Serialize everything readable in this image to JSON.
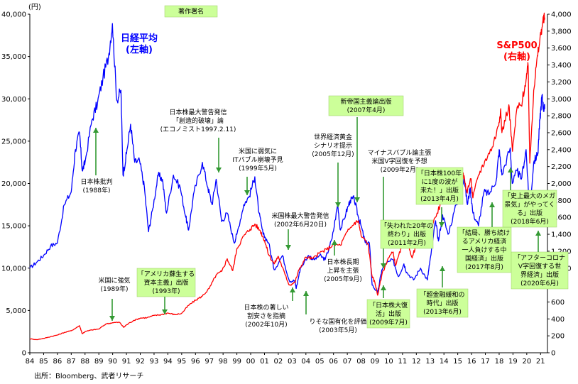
{
  "chart_data": {
    "type": "line",
    "x_axis": {
      "ticks": [
        "84",
        "85",
        "86",
        "87",
        "88",
        "89",
        "90",
        "91",
        "92",
        "93",
        "94",
        "95",
        "96",
        "97",
        "98",
        "99",
        "00",
        "01",
        "02",
        "03",
        "04",
        "05",
        "06",
        "07",
        "08",
        "09",
        "10",
        "11",
        "12",
        "13",
        "14",
        "15",
        "16",
        "17",
        "18",
        "19",
        "20",
        "21"
      ],
      "range": [
        1984,
        2021.5
      ]
    },
    "y_left": {
      "unit_label": "(円)",
      "ticks": [
        "0",
        "5,000",
        "10,000",
        "15,000",
        "20,000",
        "25,000",
        "30,000",
        "35,000",
        "40,000"
      ],
      "range": [
        0,
        40000
      ]
    },
    "y_right": {
      "ticks": [
        "0",
        "200",
        "400",
        "600",
        "800",
        "1,000",
        "1,200",
        "1,400",
        "1,600",
        "1,800",
        "2,000",
        "2,200",
        "2,400",
        "2,600",
        "2,800",
        "3,000",
        "3,200",
        "3,400",
        "3,600",
        "3,800",
        "4,000"
      ],
      "range": [
        0,
        4000
      ]
    },
    "grid": false,
    "series": [
      {
        "name": "日経平均\n(左軸)",
        "axis": "left",
        "color": "#0000ff",
        "points": [
          [
            1984.0,
            10000
          ],
          [
            1984.5,
            10700
          ],
          [
            1985.0,
            11500
          ],
          [
            1985.5,
            12600
          ],
          [
            1986.0,
            13000
          ],
          [
            1986.5,
            17500
          ],
          [
            1987.0,
            19000
          ],
          [
            1987.3,
            24000
          ],
          [
            1987.6,
            26000
          ],
          [
            1987.8,
            21500
          ],
          [
            1988.0,
            22500
          ],
          [
            1988.5,
            27500
          ],
          [
            1988.9,
            29500
          ],
          [
            1989.3,
            32500
          ],
          [
            1989.7,
            35000
          ],
          [
            1989.98,
            38900
          ],
          [
            1990.3,
            29800
          ],
          [
            1990.6,
            31000
          ],
          [
            1990.75,
            21000
          ],
          [
            1991.0,
            23500
          ],
          [
            1991.3,
            27000
          ],
          [
            1991.6,
            22500
          ],
          [
            1991.95,
            22700
          ],
          [
            1992.3,
            19500
          ],
          [
            1992.6,
            14300
          ],
          [
            1992.9,
            17000
          ],
          [
            1993.3,
            21000
          ],
          [
            1993.6,
            20500
          ],
          [
            1993.9,
            16500
          ],
          [
            1994.4,
            21000
          ],
          [
            1994.9,
            19500
          ],
          [
            1995.3,
            16000
          ],
          [
            1995.5,
            14500
          ],
          [
            1995.9,
            19000
          ],
          [
            1996.5,
            22500
          ],
          [
            1996.9,
            19500
          ],
          [
            1997.2,
            17500
          ],
          [
            1997.5,
            20500
          ],
          [
            1997.9,
            15500
          ],
          [
            1998.3,
            16500
          ],
          [
            1998.8,
            13000
          ],
          [
            1999.0,
            14000
          ],
          [
            1999.5,
            17500
          ],
          [
            1999.9,
            18500
          ],
          [
            2000.3,
            20800
          ],
          [
            2000.6,
            16500
          ],
          [
            2000.9,
            14000
          ],
          [
            2001.3,
            13000
          ],
          [
            2001.7,
            9800
          ],
          [
            2002.3,
            11500
          ],
          [
            2002.8,
            8500
          ],
          [
            2003.2,
            8500
          ],
          [
            2003.3,
            7600
          ],
          [
            2003.6,
            10000
          ],
          [
            2004.2,
            11500
          ],
          [
            2004.6,
            11000
          ],
          [
            2005.0,
            11500
          ],
          [
            2005.4,
            11000
          ],
          [
            2005.9,
            13500
          ],
          [
            2006.3,
            17500
          ],
          [
            2006.5,
            14500
          ],
          [
            2006.9,
            16500
          ],
          [
            2007.2,
            18000
          ],
          [
            2007.5,
            18200
          ],
          [
            2007.8,
            16000
          ],
          [
            2007.95,
            15300
          ],
          [
            2008.3,
            13000
          ],
          [
            2008.6,
            13000
          ],
          [
            2008.8,
            8000
          ],
          [
            2009.2,
            7100
          ],
          [
            2009.5,
            9800
          ],
          [
            2009.8,
            10500
          ],
          [
            2010.3,
            11000
          ],
          [
            2010.7,
            9000
          ],
          [
            2011.1,
            10500
          ],
          [
            2011.3,
            9500
          ],
          [
            2011.8,
            8600
          ],
          [
            2012.3,
            10000
          ],
          [
            2012.8,
            8600
          ],
          [
            2012.95,
            10400
          ],
          [
            2013.4,
            15600
          ],
          [
            2013.6,
            13200
          ],
          [
            2013.9,
            16300
          ],
          [
            2014.3,
            14000
          ],
          [
            2014.9,
            17500
          ],
          [
            2015.3,
            19500
          ],
          [
            2015.45,
            20800
          ],
          [
            2015.7,
            17500
          ],
          [
            2015.9,
            19500
          ],
          [
            2016.1,
            16500
          ],
          [
            2016.5,
            15000
          ],
          [
            2016.9,
            19000
          ],
          [
            2017.3,
            18800
          ],
          [
            2017.8,
            20500
          ],
          [
            2018.0,
            24000
          ],
          [
            2018.2,
            21000
          ],
          [
            2018.8,
            24200
          ],
          [
            2018.95,
            20000
          ],
          [
            2019.3,
            21500
          ],
          [
            2019.6,
            20500
          ],
          [
            2019.95,
            24000
          ],
          [
            2020.2,
            16500
          ],
          [
            2020.5,
            22500
          ],
          [
            2020.8,
            23500
          ],
          [
            2020.95,
            27500
          ],
          [
            2021.1,
            30400
          ],
          [
            2021.2,
            29000
          ],
          [
            2021.3,
            28800
          ]
        ]
      },
      {
        "name": "S&P500\n(右軸)",
        "axis": "right",
        "color": "#ff0000",
        "points": [
          [
            1984.0,
            165
          ],
          [
            1984.5,
            155
          ],
          [
            1985.0,
            170
          ],
          [
            1985.5,
            190
          ],
          [
            1986.0,
            210
          ],
          [
            1986.5,
            240
          ],
          [
            1987.0,
            260
          ],
          [
            1987.6,
            320
          ],
          [
            1987.8,
            225
          ],
          [
            1988.0,
            250
          ],
          [
            1988.5,
            270
          ],
          [
            1989.0,
            280
          ],
          [
            1989.5,
            340
          ],
          [
            1989.98,
            355
          ],
          [
            1990.5,
            360
          ],
          [
            1990.8,
            300
          ],
          [
            1991.0,
            330
          ],
          [
            1991.5,
            380
          ],
          [
            1992.0,
            410
          ],
          [
            1992.5,
            415
          ],
          [
            1993.0,
            440
          ],
          [
            1993.5,
            450
          ],
          [
            1994.0,
            470
          ],
          [
            1994.5,
            450
          ],
          [
            1995.0,
            465
          ],
          [
            1995.5,
            560
          ],
          [
            1996.0,
            620
          ],
          [
            1996.5,
            670
          ],
          [
            1997.0,
            760
          ],
          [
            1997.5,
            920
          ],
          [
            1997.9,
            960
          ],
          [
            1998.3,
            1110
          ],
          [
            1998.7,
            970
          ],
          [
            1999.0,
            1230
          ],
          [
            1999.5,
            1380
          ],
          [
            1999.95,
            1460
          ],
          [
            2000.3,
            1520
          ],
          [
            2000.7,
            1440
          ],
          [
            2001.0,
            1330
          ],
          [
            2001.3,
            1160
          ],
          [
            2001.7,
            1050
          ],
          [
            2002.0,
            1140
          ],
          [
            2002.5,
            920
          ],
          [
            2002.8,
            800
          ],
          [
            2003.2,
            830
          ],
          [
            2003.5,
            980
          ],
          [
            2004.0,
            1130
          ],
          [
            2004.5,
            1110
          ],
          [
            2005.0,
            1180
          ],
          [
            2005.5,
            1220
          ],
          [
            2006.0,
            1280
          ],
          [
            2006.5,
            1270
          ],
          [
            2007.0,
            1430
          ],
          [
            2007.5,
            1530
          ],
          [
            2007.8,
            1560
          ],
          [
            2008.0,
            1380
          ],
          [
            2008.5,
            1290
          ],
          [
            2008.8,
            900
          ],
          [
            2009.0,
            830
          ],
          [
            2009.2,
            680
          ],
          [
            2009.5,
            920
          ],
          [
            2009.95,
            1115
          ],
          [
            2010.3,
            1190
          ],
          [
            2010.5,
            1030
          ],
          [
            2010.95,
            1260
          ],
          [
            2011.3,
            1360
          ],
          [
            2011.7,
            1120
          ],
          [
            2011.95,
            1260
          ],
          [
            2012.3,
            1400
          ],
          [
            2012.5,
            1330
          ],
          [
            2012.95,
            1430
          ],
          [
            2013.5,
            1650
          ],
          [
            2013.95,
            1840
          ],
          [
            2014.5,
            1960
          ],
          [
            2014.95,
            2060
          ],
          [
            2015.4,
            2120
          ],
          [
            2015.65,
            1900
          ],
          [
            2015.95,
            2050
          ],
          [
            2016.1,
            1830
          ],
          [
            2016.5,
            2100
          ],
          [
            2016.95,
            2260
          ],
          [
            2017.5,
            2430
          ],
          [
            2017.95,
            2680
          ],
          [
            2018.1,
            2870
          ],
          [
            2018.2,
            2600
          ],
          [
            2018.7,
            2930
          ],
          [
            2018.97,
            2380
          ],
          [
            2019.3,
            2900
          ],
          [
            2019.6,
            2920
          ],
          [
            2019.95,
            3230
          ],
          [
            2020.1,
            3390
          ],
          [
            2020.22,
            2240
          ],
          [
            2020.5,
            3100
          ],
          [
            2020.7,
            3400
          ],
          [
            2020.95,
            3700
          ],
          [
            2021.15,
            3900
          ],
          [
            2021.3,
            3960
          ]
        ]
      }
    ],
    "annotations": [
      {
        "id": "chosaku",
        "lines": [
          "著作署名"
        ]
      },
      {
        "id": "a1988",
        "lines": [
          "日本株批判",
          "(1988年)"
        ]
      },
      {
        "id": "a1989",
        "lines": [
          "米国に強気",
          "(1989年)"
        ]
      },
      {
        "id": "a1993",
        "lines": [
          "「アメリカ蘇生する",
          "資本主義」出版",
          "(1993年)"
        ]
      },
      {
        "id": "a1997",
        "lines": [
          "日本株最大警告発信",
          "「創造的破壊」論",
          "(エコノミスト1997.2.11)"
        ]
      },
      {
        "id": "a1999",
        "lines": [
          "米国に弱気に",
          "ITバブル崩壊予見",
          "(1999年5月)"
        ]
      },
      {
        "id": "a2002b",
        "lines": [
          "米国株最大警告発信",
          "(2002年6月20日)"
        ]
      },
      {
        "id": "a2002a",
        "lines": [
          "日本株の著しい",
          "割安さを指摘",
          "(2002年10月)"
        ]
      },
      {
        "id": "a2003",
        "lines": [
          "りそな国有化を評価",
          "(2003年5月)"
        ]
      },
      {
        "id": "a2005b",
        "lines": [
          "世界経済黄金",
          "シナリオ提示",
          "(2005年12月)"
        ]
      },
      {
        "id": "a2005a",
        "lines": [
          "日本株長期",
          "上昇を主張",
          "(2005年9月)"
        ]
      },
      {
        "id": "a2007",
        "lines": [
          "新帝国主義論出版",
          "(2007年4月)"
        ]
      },
      {
        "id": "a2009b",
        "lines": [
          "マイナスバブル論主張",
          "米国V字回復を予想",
          "(2009年2月)"
        ]
      },
      {
        "id": "a2009a",
        "lines": [
          "「日本株大復",
          "活」出版",
          "(2009年7月)"
        ]
      },
      {
        "id": "a2011",
        "lines": [
          "「失われた20年の",
          "終わり」出版",
          "(2011年2月)"
        ]
      },
      {
        "id": "a2013b",
        "lines": [
          "「日本株100年",
          "に1度の波が",
          "来た！」出版",
          "(2013年4月)"
        ]
      },
      {
        "id": "a2013a",
        "lines": [
          "「超金融緩和の",
          "時代」出版",
          "(2013年6月)"
        ]
      },
      {
        "id": "a2017",
        "lines": [
          "「結局、勝ち続け",
          "るアメリカ経済",
          "一人負けする中",
          "国経済」出版",
          "(2017年8月)"
        ]
      },
      {
        "id": "a2018",
        "lines": [
          "「史上最大のメガ",
          "景気」がやってく",
          "る」出版",
          "(2018年6月)"
        ]
      },
      {
        "id": "a2020",
        "lines": [
          "「アフターコロナ",
          "V字回復する世",
          "界経済」出版",
          "(2020年6月)"
        ]
      }
    ]
  },
  "source": "出所：Bloomberg、武者リサーチ"
}
